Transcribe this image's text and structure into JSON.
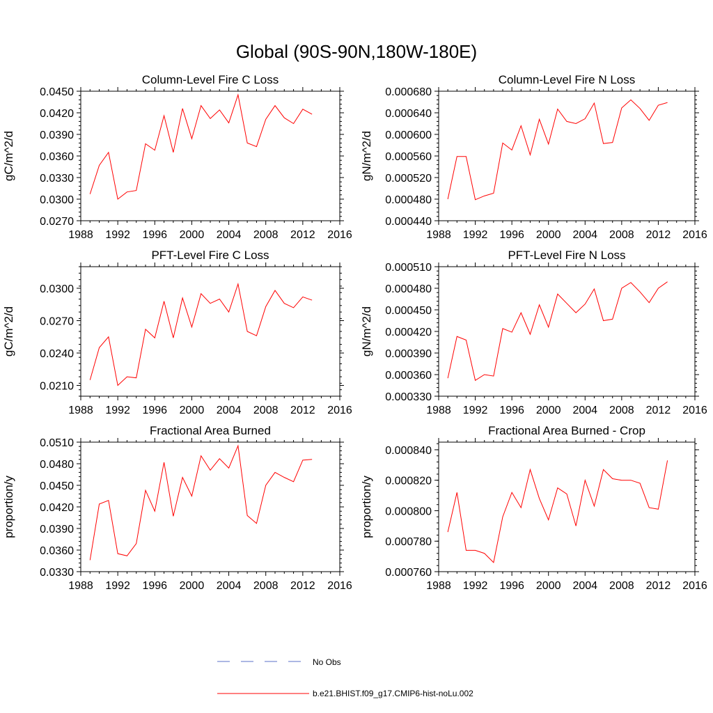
{
  "figure_title": "Global (90S-90N,180W-180E)",
  "legend": {
    "items": [
      {
        "label": "No Obs",
        "color": "#5a6fc8",
        "style": "dashed"
      },
      {
        "label": "b.e21.BHIST.f09_g17.CMIP6-hist-noLu.002",
        "color": "#ff0000",
        "style": "solid"
      }
    ]
  },
  "chart_data": [
    {
      "type": "line",
      "title": "Column-Level Fire C Loss",
      "xlabel": "",
      "ylabel": "gC/m^2/d",
      "xlim": [
        1988,
        2016
      ],
      "ylim": [
        0.027,
        0.045
      ],
      "xticks": [
        "1988",
        "1992",
        "1996",
        "2000",
        "2004",
        "2008",
        "2012",
        "2016"
      ],
      "yticks": [
        "0.0270",
        "0.0300",
        "0.0330",
        "0.0360",
        "0.0390",
        "0.0420",
        "0.0450"
      ],
      "x": [
        1989,
        1990,
        1991,
        1992,
        1993,
        1994,
        1995,
        1996,
        1997,
        1998,
        1999,
        2000,
        2001,
        2002,
        2003,
        2004,
        2005,
        2006,
        2007,
        2008,
        2009,
        2010,
        2011,
        2012,
        2013
      ],
      "series": [
        {
          "color": "#ff0000",
          "values": [
            0.0307,
            0.0347,
            0.0365,
            0.03,
            0.031,
            0.0312,
            0.0377,
            0.0368,
            0.0416,
            0.0365,
            0.0426,
            0.0384,
            0.043,
            0.0412,
            0.0424,
            0.0406,
            0.0445,
            0.0378,
            0.0373,
            0.0411,
            0.043,
            0.0413,
            0.0405,
            0.0425,
            0.0418
          ]
        }
      ]
    },
    {
      "type": "line",
      "title": "Column-Level Fire N Loss",
      "xlabel": "",
      "ylabel": "gN/m^2/d",
      "xlim": [
        1988,
        2016
      ],
      "ylim": [
        0.00044,
        0.00068
      ],
      "xticks": [
        "1988",
        "1992",
        "1996",
        "2000",
        "2004",
        "2008",
        "2012",
        "2016"
      ],
      "yticks": [
        "0.000440",
        "0.000480",
        "0.000520",
        "0.000560",
        "0.000600",
        "0.000640",
        "0.000680"
      ],
      "x": [
        1989,
        1990,
        1991,
        1992,
        1993,
        1994,
        1995,
        1996,
        1997,
        1998,
        1999,
        2000,
        2001,
        2002,
        2003,
        2004,
        2005,
        2006,
        2007,
        2008,
        2009,
        2010,
        2011,
        2012,
        2013
      ],
      "series": [
        {
          "color": "#ff0000",
          "values": [
            0.00048,
            0.000559,
            0.000559,
            0.000479,
            0.000486,
            0.000491,
            0.000584,
            0.000571,
            0.000616,
            0.000562,
            0.000628,
            0.000582,
            0.000647,
            0.000624,
            0.00062,
            0.000629,
            0.000658,
            0.000583,
            0.000585,
            0.000649,
            0.000664,
            0.000648,
            0.000626,
            0.000654,
            0.000659
          ]
        }
      ]
    },
    {
      "type": "line",
      "title": "PFT-Level Fire C Loss",
      "xlabel": "",
      "ylabel": "gC/m^2/d",
      "xlim": [
        1988,
        2016
      ],
      "ylim": [
        0.02,
        0.032
      ],
      "xticks": [
        "1988",
        "1992",
        "1996",
        "2000",
        "2004",
        "2008",
        "2012",
        "2016"
      ],
      "yticks": [
        "0.0210",
        "0.0240",
        "0.0270",
        "0.0300"
      ],
      "x": [
        1989,
        1990,
        1991,
        1992,
        1993,
        1994,
        1995,
        1996,
        1997,
        1998,
        1999,
        2000,
        2001,
        2002,
        2003,
        2004,
        2005,
        2006,
        2007,
        2008,
        2009,
        2010,
        2011,
        2012,
        2013
      ],
      "series": [
        {
          "color": "#ff0000",
          "values": [
            0.0215,
            0.0245,
            0.0255,
            0.021,
            0.0218,
            0.0217,
            0.0262,
            0.0254,
            0.0288,
            0.0254,
            0.0291,
            0.0264,
            0.0295,
            0.0286,
            0.029,
            0.0278,
            0.0304,
            0.026,
            0.0256,
            0.0283,
            0.0298,
            0.0286,
            0.0282,
            0.0292,
            0.0289
          ]
        }
      ]
    },
    {
      "type": "line",
      "title": "PFT-Level Fire N Loss",
      "xlabel": "",
      "ylabel": "gN/m^2/d",
      "xlim": [
        1988,
        2016
      ],
      "ylim": [
        0.00033,
        0.00051
      ],
      "xticks": [
        "1988",
        "1992",
        "1996",
        "2000",
        "2004",
        "2008",
        "2012",
        "2016"
      ],
      "yticks": [
        "0.000330",
        "0.000360",
        "0.000390",
        "0.000420",
        "0.000450",
        "0.000480",
        "0.000510"
      ],
      "x": [
        1989,
        1990,
        1991,
        1992,
        1993,
        1994,
        1995,
        1996,
        1997,
        1998,
        1999,
        2000,
        2001,
        2002,
        2003,
        2004,
        2005,
        2006,
        2007,
        2008,
        2009,
        2010,
        2011,
        2012,
        2013
      ],
      "series": [
        {
          "color": "#ff0000",
          "values": [
            0.000355,
            0.000413,
            0.000408,
            0.000352,
            0.00036,
            0.000358,
            0.000424,
            0.000419,
            0.000446,
            0.000416,
            0.000457,
            0.000426,
            0.000472,
            0.000459,
            0.000446,
            0.000458,
            0.000479,
            0.000435,
            0.000437,
            0.00048,
            0.000488,
            0.000475,
            0.00046,
            0.00048,
            0.000489
          ]
        }
      ]
    },
    {
      "type": "line",
      "title": "Fractional Area Burned",
      "xlabel": "",
      "ylabel": "proportion/y",
      "xlim": [
        1988,
        2016
      ],
      "ylim": [
        0.033,
        0.051
      ],
      "xticks": [
        "1988",
        "1992",
        "1996",
        "2000",
        "2004",
        "2008",
        "2012",
        "2016"
      ],
      "yticks": [
        "0.0330",
        "0.0360",
        "0.0390",
        "0.0420",
        "0.0450",
        "0.0480",
        "0.0510"
      ],
      "x": [
        1989,
        1990,
        1991,
        1992,
        1993,
        1994,
        1995,
        1996,
        1997,
        1998,
        1999,
        2000,
        2001,
        2002,
        2003,
        2004,
        2005,
        2006,
        2007,
        2008,
        2009,
        2010,
        2011,
        2012,
        2013
      ],
      "series": [
        {
          "color": "#ff0000",
          "values": [
            0.0346,
            0.0424,
            0.0429,
            0.0355,
            0.0352,
            0.0369,
            0.0443,
            0.0414,
            0.0482,
            0.0407,
            0.0461,
            0.0435,
            0.0491,
            0.0471,
            0.0487,
            0.0474,
            0.0505,
            0.0408,
            0.0397,
            0.045,
            0.0468,
            0.0461,
            0.0455,
            0.0485,
            0.0486
          ]
        }
      ]
    },
    {
      "type": "line",
      "title": "Fractional Area Burned - Crop",
      "xlabel": "",
      "ylabel": "proportion/y",
      "xlim": [
        1988,
        2016
      ],
      "ylim": [
        0.00076,
        0.000845
      ],
      "xticks": [
        "1988",
        "1992",
        "1996",
        "2000",
        "2004",
        "2008",
        "2012",
        "2016"
      ],
      "yticks": [
        "0.000760",
        "0.000780",
        "0.000800",
        "0.000820",
        "0.000840"
      ],
      "x": [
        1989,
        1990,
        1991,
        1992,
        1993,
        1994,
        1995,
        1996,
        1997,
        1998,
        1999,
        2000,
        2001,
        2002,
        2003,
        2004,
        2005,
        2006,
        2007,
        2008,
        2009,
        2010,
        2011,
        2012,
        2013
      ],
      "series": [
        {
          "color": "#ff0000",
          "values": [
            0.000786,
            0.000812,
            0.000774,
            0.000774,
            0.000772,
            0.000766,
            0.000796,
            0.000812,
            0.000802,
            0.000827,
            0.000808,
            0.000794,
            0.000815,
            0.000811,
            0.00079,
            0.00082,
            0.000803,
            0.000827,
            0.000821,
            0.00082,
            0.00082,
            0.000818,
            0.000802,
            0.000801,
            0.000833
          ]
        }
      ]
    }
  ]
}
